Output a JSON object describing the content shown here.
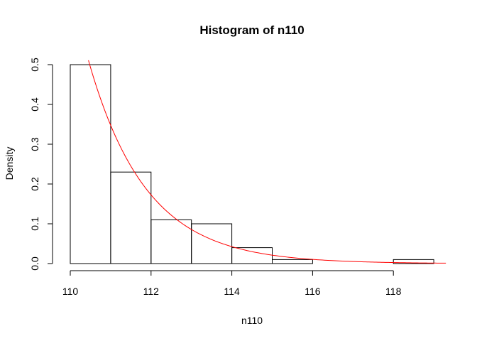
{
  "chart_data": {
    "type": "bar",
    "title": "Histogram of n110",
    "xlabel": "n110",
    "ylabel": "Density",
    "bins": [
      {
        "start": 110,
        "end": 111,
        "density": 0.5
      },
      {
        "start": 111,
        "end": 112,
        "density": 0.23
      },
      {
        "start": 112,
        "end": 113,
        "density": 0.11
      },
      {
        "start": 113,
        "end": 114,
        "density": 0.1
      },
      {
        "start": 114,
        "end": 115,
        "density": 0.04
      },
      {
        "start": 115,
        "end": 116,
        "density": 0.01
      },
      {
        "start": 116,
        "end": 117,
        "density": 0.0
      },
      {
        "start": 117,
        "end": 118,
        "density": 0.0
      },
      {
        "start": 118,
        "end": 119,
        "density": 0.01
      }
    ],
    "x_ticks": [
      "110",
      "112",
      "114",
      "116",
      "118"
    ],
    "y_ticks": [
      "0.0",
      "0.1",
      "0.2",
      "0.3",
      "0.4",
      "0.5"
    ],
    "xlim": [
      110,
      119.5
    ],
    "ylim": [
      0,
      0.5
    ],
    "overlay_curve": {
      "type": "exponential-density",
      "offset": 110,
      "rate": 0.7,
      "x_start": 110.45,
      "x_end": 119.3,
      "color": "#ff0000"
    },
    "grid": false,
    "legend": "none"
  }
}
